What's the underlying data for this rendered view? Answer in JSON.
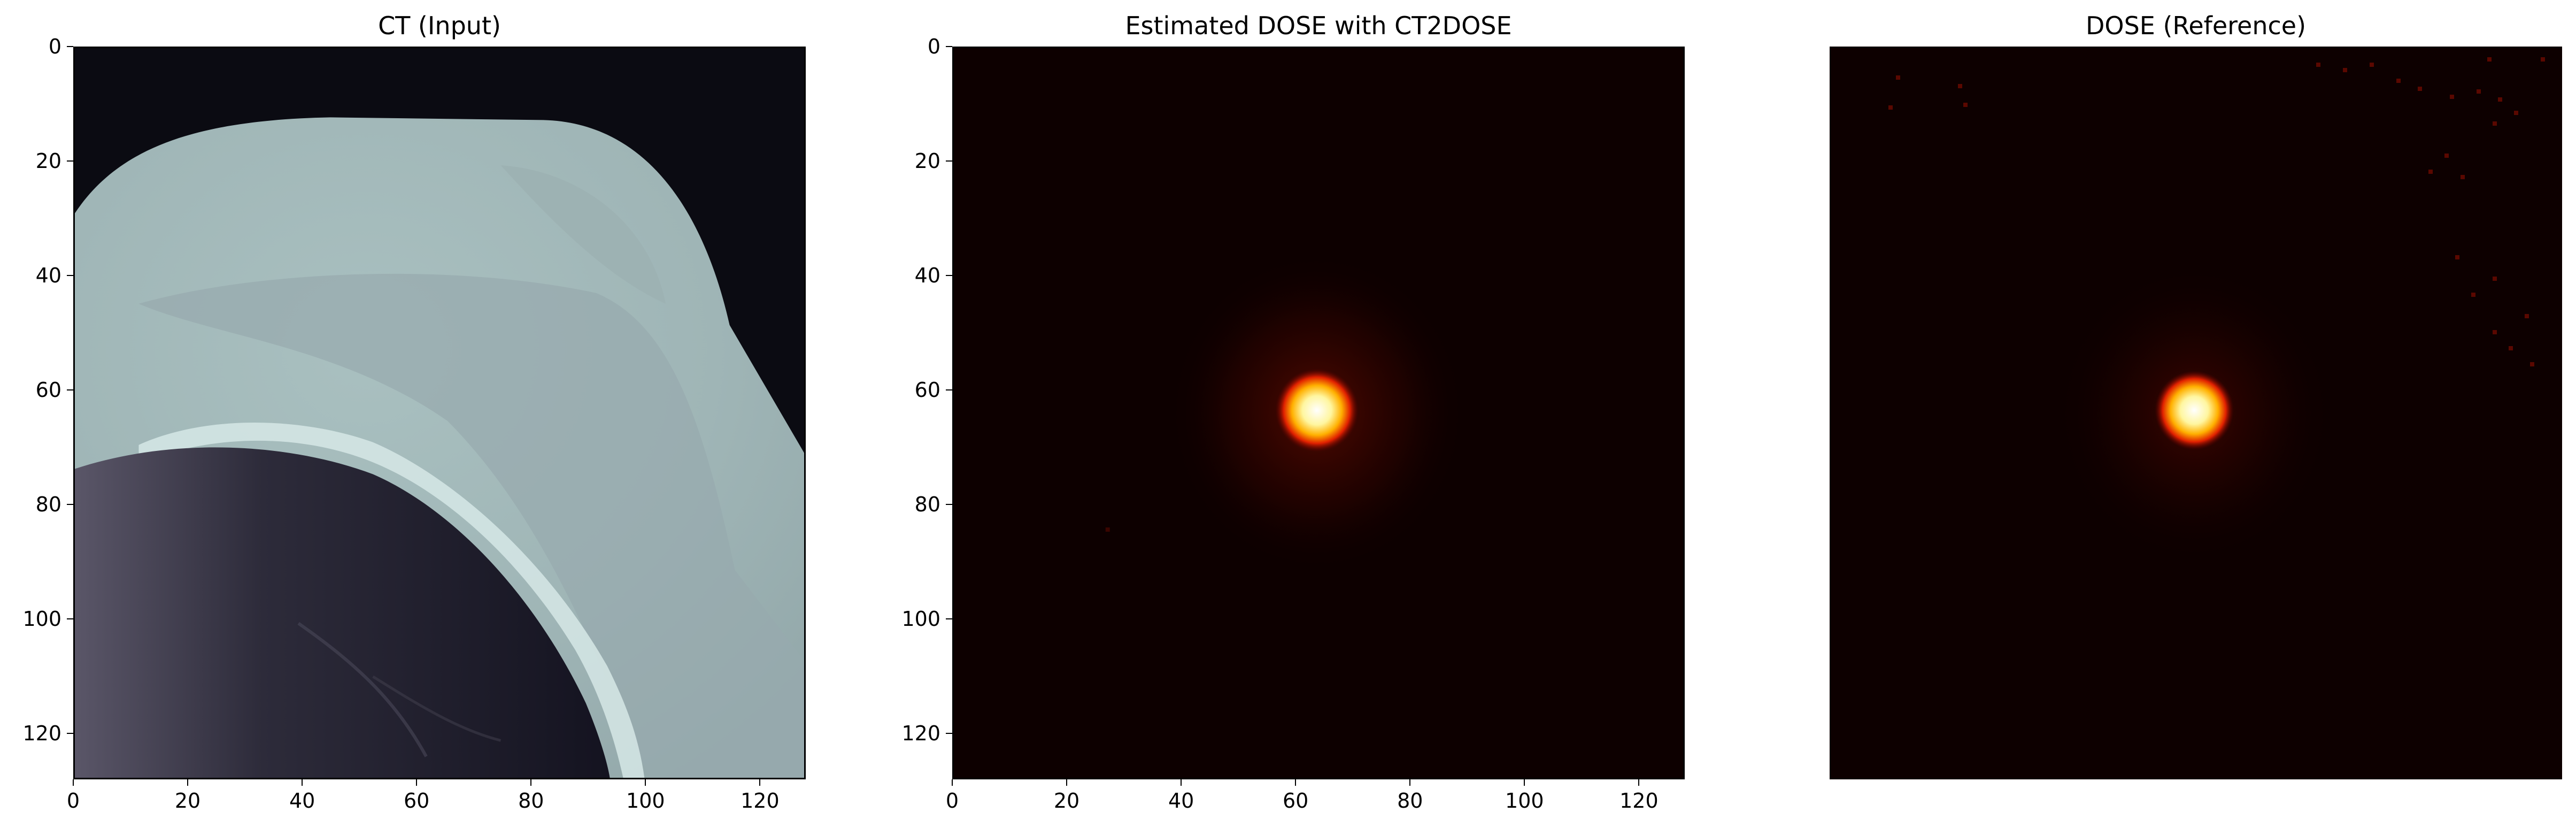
{
  "panels": [
    {
      "title": "CT (Input)",
      "show_axes": true,
      "colormap": "bone"
    },
    {
      "title": "Estimated DOSE with CT2DOSE",
      "show_axes": true,
      "colormap": "hot"
    },
    {
      "title": "DOSE (Reference)",
      "show_axes": false,
      "colormap": "hot"
    }
  ],
  "axes": {
    "xticks": [
      "0",
      "20",
      "40",
      "60",
      "80",
      "100",
      "120"
    ],
    "yticks": [
      "0",
      "20",
      "40",
      "60",
      "80",
      "100",
      "120"
    ],
    "range": [
      0,
      128
    ]
  },
  "colors": {
    "background": "#ffffff",
    "dose_dark": "#0d0000",
    "ct_dark": "#0b0b12",
    "ct_tissue": "#a8bfbf"
  }
}
